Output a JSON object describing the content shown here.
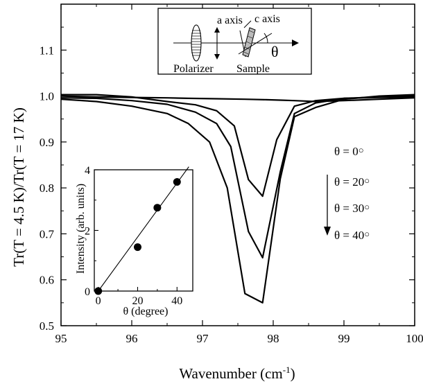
{
  "chart_data": [
    {
      "type": "line",
      "role": "main",
      "xlabel": "Wavenumber (cm",
      "xlabel_sup": "-1",
      "xlabel_tail": ")",
      "ylabel": "Tr(T = 4.5 K)/Tr(T = 17 K)",
      "xlim": [
        95,
        100
      ],
      "ylim": [
        0.5,
        1.2
      ],
      "x_ticks": [
        95,
        96,
        97,
        98,
        99,
        100
      ],
      "y_ticks": [
        0.5,
        0.6,
        0.7,
        0.8,
        0.9,
        1.0,
        1.1
      ],
      "x_tick_labels": [
        "95",
        "96",
        "97",
        "98",
        "99",
        "100"
      ],
      "y_tick_labels": [
        "0.5",
        "0.6",
        "0.7",
        "0.8",
        "0.9",
        "1.0",
        "1.1"
      ],
      "series": [
        {
          "name": "θ = 0°",
          "x": [
            95.0,
            95.5,
            96.0,
            96.5,
            96.8,
            97.2,
            97.6,
            97.9,
            98.1,
            98.3,
            98.6,
            99.0,
            99.5,
            100.0
          ],
          "y": [
            1.0,
            0.998,
            0.997,
            0.996,
            0.995,
            0.994,
            0.993,
            0.992,
            0.991,
            0.99,
            0.988,
            0.99,
            0.993,
            0.996
          ]
        },
        {
          "name": "θ = 20°",
          "x": [
            95.0,
            95.5,
            96.0,
            96.5,
            96.9,
            97.2,
            97.45,
            97.65,
            97.85,
            98.05,
            98.3,
            98.6,
            99.0,
            99.5,
            100.0
          ],
          "y": [
            1.003,
            1.003,
            0.998,
            0.988,
            0.981,
            0.968,
            0.935,
            0.818,
            0.782,
            0.905,
            0.978,
            0.99,
            0.995,
            0.998,
            1.0
          ]
        },
        {
          "name": "θ = 30°",
          "x": [
            95.0,
            95.5,
            96.0,
            96.5,
            96.9,
            97.2,
            97.4,
            97.65,
            97.85,
            98.1,
            98.3,
            98.6,
            99.0,
            99.5,
            100.0
          ],
          "y": [
            0.996,
            0.995,
            0.99,
            0.982,
            0.965,
            0.94,
            0.89,
            0.705,
            0.648,
            0.835,
            0.962,
            0.985,
            0.995,
            0.997,
            0.998
          ]
        },
        {
          "name": "θ = 40°",
          "x": [
            95.0,
            95.5,
            96.0,
            96.5,
            96.8,
            97.1,
            97.35,
            97.6,
            97.85,
            98.1,
            98.3,
            98.6,
            99.0,
            99.5,
            100.0
          ],
          "y": [
            0.993,
            0.988,
            0.978,
            0.962,
            0.94,
            0.9,
            0.8,
            0.57,
            0.55,
            0.82,
            0.955,
            0.975,
            0.993,
            1.0,
            1.003
          ]
        }
      ],
      "legend": {
        "labels": [
          "θ = 0",
          "θ = 20",
          "θ = 30",
          "θ = 40"
        ],
        "degree_symbol": "○",
        "placement": "right"
      },
      "schematic": {
        "labels": [
          "a axis",
          "c axis",
          "θ",
          "Polarizer",
          "Sample"
        ]
      }
    },
    {
      "type": "scatter",
      "role": "inset",
      "xlabel": "θ (degree)",
      "ylabel": "Intensity (arb. units)",
      "xlim": [
        -2,
        48
      ],
      "ylim": [
        0,
        4
      ],
      "x_ticks": [
        0,
        20,
        40
      ],
      "y_ticks": [
        0,
        2,
        4
      ],
      "x_tick_labels": [
        "0",
        "20",
        "40"
      ],
      "y_tick_labels": [
        "0",
        "2",
        "4"
      ],
      "points": {
        "x": [
          0,
          20,
          30,
          40
        ],
        "y": [
          0.0,
          1.45,
          2.75,
          3.6
        ]
      },
      "fit_line": {
        "x": [
          0,
          46
        ],
        "y": [
          0.0,
          4.1
        ]
      }
    }
  ]
}
